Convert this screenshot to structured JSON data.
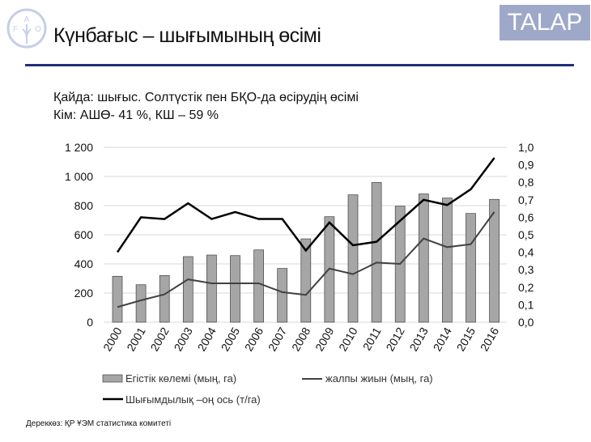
{
  "header": {
    "title": "Күнбағыс – шығымының өсімі",
    "brand": "TALAP",
    "logo_text": "FAO FIAT PANIS"
  },
  "subtitle": {
    "line1": "Қайда: шығыс. Солтүстік пен БҚО-да өсірудің  өсімі",
    "line2": "Кім: АШӨ- 41 %, КШ – 59 %"
  },
  "source": "Дереккөз: ҚР ҰЭМ статистика комитеті",
  "colors": {
    "bar": "#a6a6a6",
    "bar_stroke": "#404040",
    "harvest": "#404040",
    "yield": "#000000",
    "rule": "#1f2f7a",
    "brand": "#9ea8c8"
  },
  "chart_data": {
    "type": "bar+line",
    "categories": [
      "2000",
      "2001",
      "2002",
      "2003",
      "2004",
      "2005",
      "2006",
      "2007",
      "2008",
      "2009",
      "2010",
      "2011",
      "2012",
      "2013",
      "2014",
      "2015",
      "2016"
    ],
    "series": [
      {
        "name": "Егістік көлемі (мың, га)",
        "type": "bar",
        "axis": "left",
        "values": [
          315,
          257,
          320,
          450,
          461,
          457,
          496,
          369,
          572,
          724,
          874,
          959,
          796,
          880,
          852,
          746,
          843
        ]
      },
      {
        "name": "жалпы жиын (мың, га)",
        "type": "line",
        "axis": "left",
        "values": [
          104,
          150,
          191,
          294,
          267,
          267,
          267,
          206,
          187,
          368,
          330,
          409,
          400,
          574,
          515,
          535,
          757
        ]
      },
      {
        "name": "Шығымдылық –оң ось (т/га)",
        "type": "line",
        "axis": "right",
        "values": [
          0.4,
          0.6,
          0.59,
          0.68,
          0.59,
          0.63,
          0.59,
          0.59,
          0.41,
          0.57,
          0.44,
          0.46,
          0.58,
          0.7,
          0.67,
          0.76,
          0.94
        ]
      }
    ],
    "y_left": {
      "range": [
        0,
        1200
      ],
      "ticks": [
        "0",
        "200",
        "400",
        "600",
        "800",
        "1 000",
        "1 200"
      ]
    },
    "y_right": {
      "range": [
        0,
        1.0
      ],
      "ticks": [
        "0,0",
        "0,1",
        "0,2",
        "0,3",
        "0,4",
        "0,5",
        "0,6",
        "0,7",
        "0,8",
        "0,9",
        "1,0"
      ]
    },
    "grid": true,
    "legend": "bottom"
  }
}
